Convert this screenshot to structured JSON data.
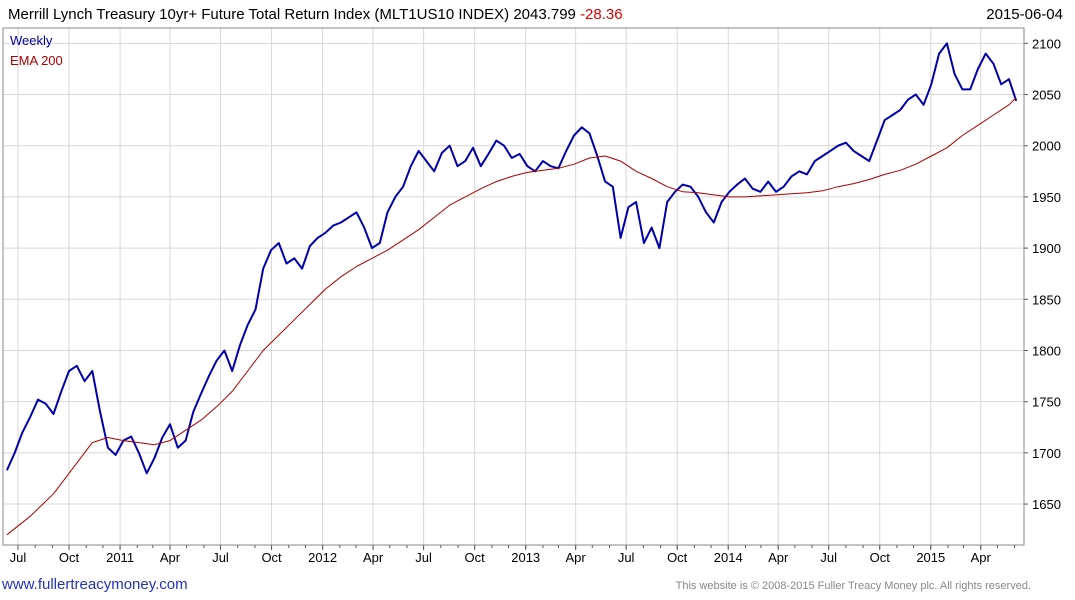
{
  "header": {
    "title": "Merrill Lynch Treasury 10yr+ Future Total Return Index (MLT1US10 INDEX) 2043.799",
    "change": "-28.36",
    "date": "2015-06-04"
  },
  "footer": {
    "website": "www.fullertreacymoney.com",
    "copyright": "This website is © 2008-2015 Fuller Treacy Money plc. All rights reserved."
  },
  "colors": {
    "weekly": "#0000aa",
    "ema": "#aa0000",
    "grid": "#d8d8d8",
    "axis": "#555555"
  },
  "chart_data": {
    "type": "line",
    "title": "Merrill Lynch Treasury 10yr+ Future Total Return Index (MLT1US10 INDEX) 2043.799",
    "ylim": [
      1610,
      2115
    ],
    "yticks": [
      1650,
      1700,
      1750,
      1800,
      1850,
      1900,
      1950,
      2000,
      2050,
      2100
    ],
    "xlim": [
      "2010-06-04",
      "2015-06-18"
    ],
    "xticks": [
      {
        "label": "Jul",
        "date": "2010-07-01"
      },
      {
        "label": "Oct",
        "date": "2010-10-01"
      },
      {
        "label": "2011",
        "date": "2011-01-01"
      },
      {
        "label": "Apr",
        "date": "2011-04-01"
      },
      {
        "label": "Jul",
        "date": "2011-07-01"
      },
      {
        "label": "Oct",
        "date": "2011-10-01"
      },
      {
        "label": "2012",
        "date": "2012-01-01"
      },
      {
        "label": "Apr",
        "date": "2012-04-01"
      },
      {
        "label": "Jul",
        "date": "2012-07-01"
      },
      {
        "label": "Oct",
        "date": "2012-10-01"
      },
      {
        "label": "2013",
        "date": "2013-01-01"
      },
      {
        "label": "Apr",
        "date": "2013-04-01"
      },
      {
        "label": "Jul",
        "date": "2013-07-01"
      },
      {
        "label": "Oct",
        "date": "2013-10-01"
      },
      {
        "label": "2014",
        "date": "2014-01-01"
      },
      {
        "label": "Apr",
        "date": "2014-04-01"
      },
      {
        "label": "Jul",
        "date": "2014-07-01"
      },
      {
        "label": "Oct",
        "date": "2014-10-01"
      },
      {
        "label": "2015",
        "date": "2015-01-01"
      },
      {
        "label": "Apr",
        "date": "2015-04-01"
      }
    ],
    "legend_position": "top-left",
    "series": [
      {
        "name": "Weekly",
        "x": [
          "2010-06-11",
          "2010-06-25",
          "2010-07-09",
          "2010-07-23",
          "2010-08-06",
          "2010-08-20",
          "2010-09-03",
          "2010-09-17",
          "2010-10-01",
          "2010-10-15",
          "2010-10-29",
          "2010-11-12",
          "2010-11-26",
          "2010-12-10",
          "2010-12-24",
          "2011-01-07",
          "2011-01-21",
          "2011-02-04",
          "2011-02-18",
          "2011-03-04",
          "2011-03-18",
          "2011-04-01",
          "2011-04-15",
          "2011-04-29",
          "2011-05-13",
          "2011-05-27",
          "2011-06-10",
          "2011-06-24",
          "2011-07-08",
          "2011-07-22",
          "2011-08-05",
          "2011-08-19",
          "2011-09-02",
          "2011-09-16",
          "2011-09-30",
          "2011-10-14",
          "2011-10-28",
          "2011-11-11",
          "2011-11-25",
          "2011-12-09",
          "2011-12-23",
          "2012-01-06",
          "2012-01-20",
          "2012-02-03",
          "2012-02-17",
          "2012-03-02",
          "2012-03-16",
          "2012-03-30",
          "2012-04-13",
          "2012-04-27",
          "2012-05-11",
          "2012-05-25",
          "2012-06-08",
          "2012-06-22",
          "2012-07-06",
          "2012-07-20",
          "2012-08-03",
          "2012-08-17",
          "2012-08-31",
          "2012-09-14",
          "2012-09-28",
          "2012-10-12",
          "2012-10-26",
          "2012-11-09",
          "2012-11-23",
          "2012-12-07",
          "2012-12-21",
          "2013-01-04",
          "2013-01-18",
          "2013-02-01",
          "2013-02-15",
          "2013-03-01",
          "2013-03-15",
          "2013-03-29",
          "2013-04-12",
          "2013-04-26",
          "2013-05-10",
          "2013-05-24",
          "2013-06-07",
          "2013-06-21",
          "2013-07-05",
          "2013-07-19",
          "2013-08-02",
          "2013-08-16",
          "2013-08-30",
          "2013-09-13",
          "2013-09-27",
          "2013-10-11",
          "2013-10-25",
          "2013-11-08",
          "2013-11-22",
          "2013-12-06",
          "2013-12-20",
          "2014-01-03",
          "2014-01-17",
          "2014-01-31",
          "2014-02-14",
          "2014-02-28",
          "2014-03-14",
          "2014-03-28",
          "2014-04-11",
          "2014-04-25",
          "2014-05-09",
          "2014-05-23",
          "2014-06-06",
          "2014-06-20",
          "2014-07-04",
          "2014-07-18",
          "2014-08-01",
          "2014-08-15",
          "2014-08-29",
          "2014-09-12",
          "2014-09-26",
          "2014-10-10",
          "2014-10-24",
          "2014-11-07",
          "2014-11-21",
          "2014-12-05",
          "2014-12-19",
          "2015-01-02",
          "2015-01-16",
          "2015-01-30",
          "2015-02-13",
          "2015-02-27",
          "2015-03-13",
          "2015-03-27",
          "2015-04-10",
          "2015-04-24",
          "2015-05-08",
          "2015-05-22",
          "2015-06-04"
        ],
        "values": [
          1683,
          1700,
          1720,
          1735,
          1752,
          1748,
          1738,
          1760,
          1780,
          1785,
          1770,
          1780,
          1740,
          1705,
          1698,
          1712,
          1716,
          1700,
          1680,
          1695,
          1715,
          1728,
          1705,
          1712,
          1740,
          1758,
          1775,
          1790,
          1800,
          1780,
          1805,
          1825,
          1840,
          1880,
          1898,
          1905,
          1885,
          1890,
          1880,
          1902,
          1910,
          1915,
          1922,
          1925,
          1930,
          1935,
          1920,
          1900,
          1905,
          1935,
          1950,
          1960,
          1980,
          1995,
          1985,
          1975,
          1993,
          2000,
          1980,
          1985,
          1998,
          1980,
          1992,
          2005,
          2000,
          1988,
          1992,
          1980,
          1975,
          1985,
          1980,
          1978,
          1995,
          2010,
          2018,
          2012,
          1990,
          1965,
          1960,
          1910,
          1940,
          1945,
          1905,
          1920,
          1900,
          1945,
          1955,
          1962,
          1960,
          1950,
          1935,
          1925,
          1945,
          1955,
          1962,
          1968,
          1958,
          1955,
          1965,
          1955,
          1960,
          1970,
          1975,
          1972,
          1985,
          1990,
          1995,
          2000,
          2003,
          1995,
          1990,
          1985,
          2005,
          2025,
          2030,
          2035,
          2045,
          2050,
          2040,
          2060,
          2090,
          2100,
          2070,
          2055,
          2055,
          2075,
          2090,
          2080,
          2060,
          2065,
          2043.799
        ]
      },
      {
        "name": "EMA 200",
        "x": [
          "2010-06-11",
          "2010-07-23",
          "2010-09-03",
          "2010-10-15",
          "2010-11-12",
          "2010-12-10",
          "2011-01-07",
          "2011-02-04",
          "2011-03-04",
          "2011-04-01",
          "2011-04-29",
          "2011-05-27",
          "2011-06-24",
          "2011-07-22",
          "2011-08-19",
          "2011-09-16",
          "2011-10-14",
          "2011-11-11",
          "2011-12-09",
          "2012-01-06",
          "2012-02-03",
          "2012-03-02",
          "2012-03-30",
          "2012-04-27",
          "2012-05-25",
          "2012-06-22",
          "2012-07-20",
          "2012-08-17",
          "2012-09-14",
          "2012-10-12",
          "2012-11-09",
          "2012-12-07",
          "2013-01-04",
          "2013-02-01",
          "2013-03-01",
          "2013-03-29",
          "2013-04-26",
          "2013-05-24",
          "2013-06-21",
          "2013-07-19",
          "2013-08-16",
          "2013-09-13",
          "2013-10-11",
          "2013-11-08",
          "2013-12-06",
          "2014-01-03",
          "2014-01-31",
          "2014-02-28",
          "2014-03-28",
          "2014-04-25",
          "2014-05-23",
          "2014-06-20",
          "2014-07-18",
          "2014-08-15",
          "2014-09-12",
          "2014-10-10",
          "2014-11-07",
          "2014-12-05",
          "2015-01-02",
          "2015-01-30",
          "2015-02-27",
          "2015-03-27",
          "2015-04-24",
          "2015-05-22",
          "2015-06-04"
        ],
        "values": [
          1620,
          1638,
          1660,
          1690,
          1710,
          1715,
          1712,
          1710,
          1708,
          1712,
          1722,
          1732,
          1745,
          1760,
          1780,
          1800,
          1815,
          1830,
          1845,
          1860,
          1872,
          1882,
          1890,
          1898,
          1908,
          1918,
          1930,
          1942,
          1950,
          1958,
          1965,
          1970,
          1974,
          1976,
          1978,
          1982,
          1988,
          1990,
          1985,
          1975,
          1968,
          1960,
          1955,
          1954,
          1952,
          1950,
          1950,
          1951,
          1952,
          1953,
          1954,
          1956,
          1960,
          1963,
          1967,
          1972,
          1976,
          1982,
          1990,
          1998,
          2010,
          2020,
          2030,
          2040,
          2047
        ]
      }
    ]
  }
}
